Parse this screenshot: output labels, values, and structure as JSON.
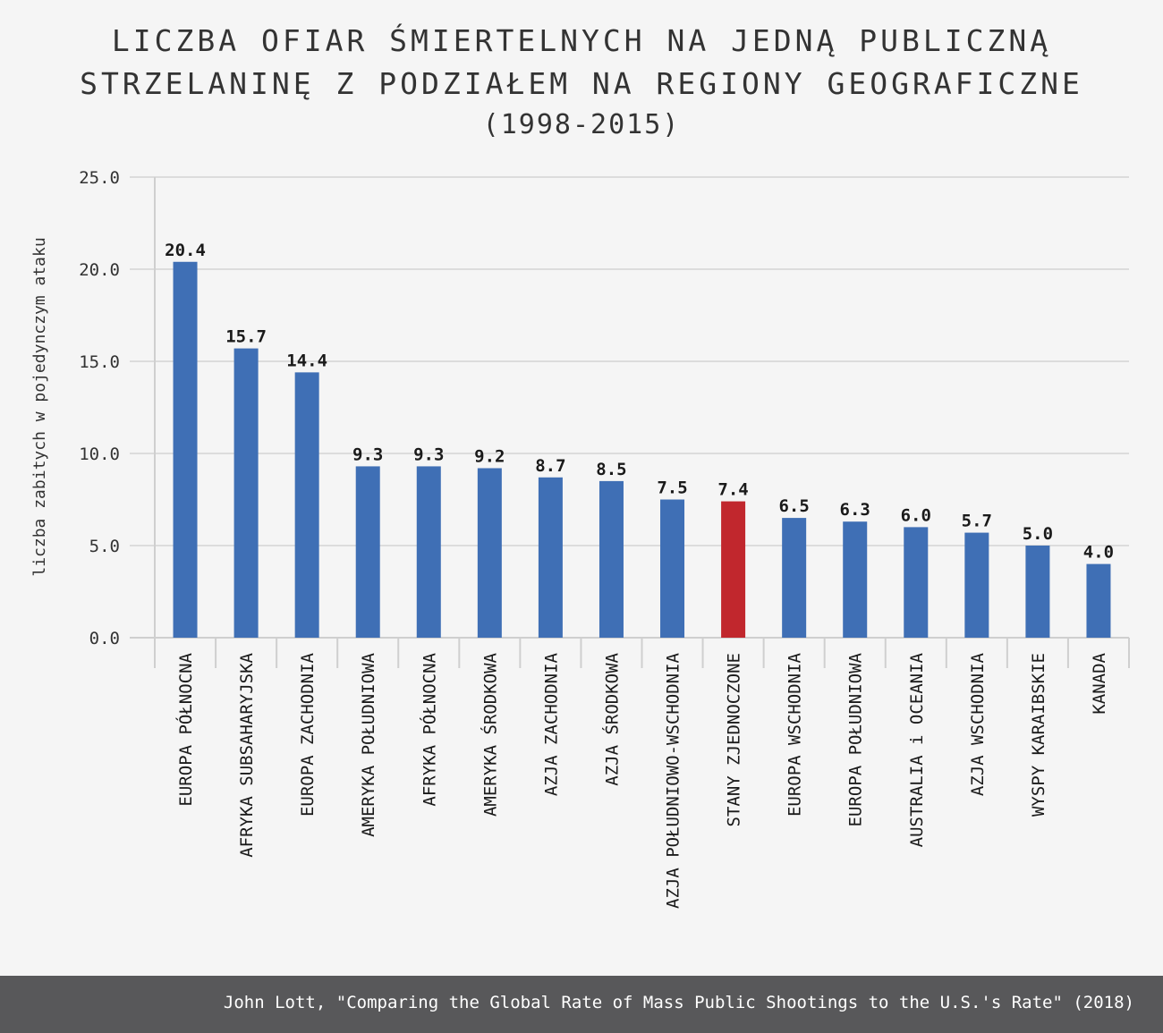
{
  "chart_data": {
    "type": "bar",
    "title_lines": [
      "LICZBA OFIAR ŚMIERTELNYCH NA JEDNĄ PUBLICZNĄ",
      "STRZELANINĘ Z PODZIAŁEM NA REGIONY GEOGRAFICZNE"
    ],
    "subtitle": "(1998-2015)",
    "ylabel": "liczba zabitych w pojedynczym ataku",
    "xlabel": "",
    "ylim": [
      0,
      25
    ],
    "yticks": [
      "0.0",
      "5.0",
      "10.0",
      "15.0",
      "20.0",
      "25.0"
    ],
    "grid": true,
    "categories": [
      "EUROPA PÓŁNOCNA",
      "AFRYKA SUBSAHARYJSKA",
      "EUROPA ZACHODNIA",
      "AMERYKA POŁUDNIOWA",
      "AFRYKA PÓŁNOCNA",
      "AMERYKA ŚRODKOWA",
      "AZJA ZACHODNIA",
      "AZJA ŚRODKOWA",
      "AZJA POŁUDNIOWO-WSCHODNIA",
      "STANY ZJEDNOCZONE",
      "EUROPA WSCHODNIA",
      "EUROPA POŁUDNIOWA",
      "AUSTRALIA i OCEANIA",
      "AZJA WSCHODNIA",
      "WYSPY KARAIBSKIE",
      "KANADA"
    ],
    "values": [
      20.4,
      15.7,
      14.4,
      9.3,
      9.3,
      9.2,
      8.7,
      8.5,
      7.5,
      7.4,
      6.5,
      6.3,
      6.0,
      5.7,
      5.0,
      4.0
    ],
    "value_labels": [
      "20.4",
      "15.7",
      "14.4",
      "9.3",
      "9.3",
      "9.2",
      "8.7",
      "8.5",
      "7.5",
      "7.4",
      "6.5",
      "6.3",
      "6.0",
      "5.7",
      "5.0",
      "4.0"
    ],
    "bar_color": "#3f6fb5",
    "highlight_color": "#c1272d",
    "highlight_category": "STANY ZJEDNOCZONE"
  },
  "footer": {
    "source": "John Lott, \"Comparing the Global Rate of Mass Public Shootings to the U.S.'s Rate\" (2018)"
  }
}
